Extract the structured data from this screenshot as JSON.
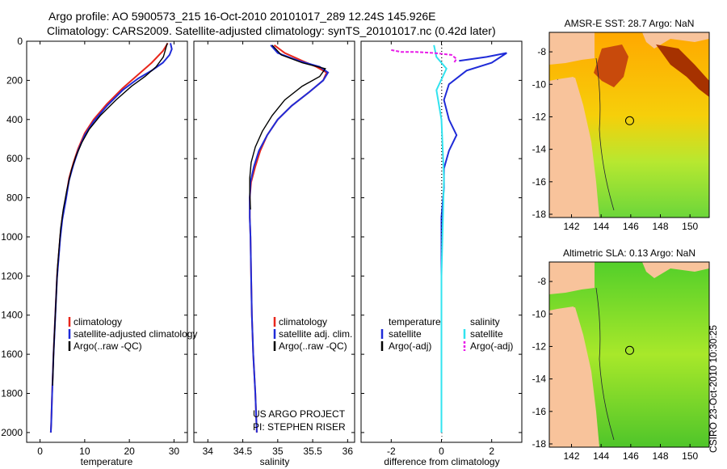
{
  "title": {
    "line1": "Argo profile: AO 5900573_215 16-Oct-2010 20101017_289 12.24S 145.926E",
    "line2": "Climatology: CARS2009. Satellite-adjusted climatology: synTS_20101017.nc (0.42d later)"
  },
  "side_text": "CSIRO 23-Oct-2010 10:30:25",
  "colors": {
    "clim": "#e8271c",
    "sat": "#1f2bd8",
    "argo": "#000000",
    "sal_sat": "#31e3ef",
    "sal_argo": "#e81be8",
    "land": "#f8c39b"
  },
  "chart_data": [
    {
      "type": "line",
      "name": "temperature",
      "xlabel": "temperature",
      "xlim": [
        -3,
        33
      ],
      "ylim": [
        0,
        2050
      ],
      "yreversed": true,
      "xticks": [
        0,
        10,
        20,
        30
      ],
      "yticks": [
        0,
        200,
        400,
        600,
        800,
        1000,
        1200,
        1400,
        1600,
        1800,
        2000
      ],
      "legend": [
        "climatology",
        "satellite-adjusted climatology",
        "Argo(..raw -QC)"
      ],
      "series": [
        {
          "name": "climatology",
          "color_key": "clim",
          "x": [
            28.6,
            27.5,
            25,
            22,
            18.5,
            15,
            12,
            10,
            8.5,
            7.5,
            6.5,
            5.8,
            5,
            4.5,
            3.8,
            3.4,
            3.0,
            2.7,
            2.5,
            2.4
          ],
          "y": [
            10,
            50,
            110,
            170,
            240,
            320,
            400,
            470,
            550,
            620,
            700,
            800,
            900,
            1000,
            1200,
            1400,
            1600,
            1800,
            1950,
            2000
          ]
        },
        {
          "name": "satellite-adjusted climatology",
          "color_key": "sat",
          "x": [
            29.2,
            29.5,
            29.0,
            27.5,
            25,
            22,
            18.5,
            15,
            12,
            10,
            8.5,
            7.5,
            6.5,
            5.8,
            5,
            4.5,
            3.8,
            3.4,
            3.0,
            2.7,
            2.5,
            2.4
          ],
          "y": [
            10,
            40,
            70,
            110,
            150,
            190,
            250,
            330,
            410,
            480,
            560,
            630,
            710,
            810,
            910,
            1010,
            1210,
            1410,
            1610,
            1810,
            1960,
            2000
          ]
        },
        {
          "name": "Argo(..raw -QC)",
          "color_key": "argo",
          "x": [
            28.5,
            27.6,
            26,
            23.5,
            20.5,
            17,
            13.5,
            11,
            9.3,
            8,
            7,
            6,
            5.2,
            4.6,
            3.9,
            3.5,
            3.1,
            2.8
          ],
          "y": [
            10,
            80,
            130,
            180,
            230,
            300,
            380,
            450,
            520,
            590,
            660,
            760,
            860,
            960,
            1160,
            1360,
            1560,
            1760
          ]
        }
      ]
    },
    {
      "type": "line",
      "name": "salinity",
      "xlabel": "salinity",
      "xlim": [
        33.8,
        36.1
      ],
      "ylim": [
        0,
        2050
      ],
      "yreversed": true,
      "xticks": [
        34,
        34.5,
        35,
        35.5,
        36
      ],
      "legend": [
        "climatology",
        "satellite adj. clim.",
        "Argo(..raw -QC)"
      ],
      "annotations": [
        "US ARGO PROJECT",
        "PI: STEPHEN RISER"
      ],
      "series": [
        {
          "name": "climatology",
          "color_key": "clim",
          "x": [
            34.95,
            35.1,
            35.35,
            35.55,
            35.7,
            35.65,
            35.45,
            35.2,
            35.0,
            34.85,
            34.75,
            34.68,
            34.62,
            34.6,
            34.6,
            34.61,
            34.62,
            34.63,
            34.65,
            34.68,
            34.7
          ],
          "y": [
            20,
            60,
            100,
            130,
            160,
            200,
            260,
            330,
            400,
            480,
            560,
            640,
            720,
            800,
            900,
            1000,
            1200,
            1400,
            1600,
            1800,
            2000
          ]
        },
        {
          "name": "satellite adj. clim.",
          "color_key": "sat",
          "x": [
            34.9,
            35.0,
            35.3,
            35.6,
            35.72,
            35.65,
            35.45,
            35.2,
            35.0,
            34.85,
            34.73,
            34.66,
            34.61,
            34.6,
            34.6,
            34.61,
            34.62,
            34.63,
            34.65,
            34.68,
            34.7
          ],
          "y": [
            20,
            60,
            100,
            130,
            160,
            200,
            260,
            330,
            400,
            480,
            560,
            640,
            720,
            800,
            900,
            1000,
            1200,
            1400,
            1600,
            1800,
            2000
          ]
        },
        {
          "name": "Argo(..raw -QC)",
          "color_key": "argo",
          "x": [
            34.92,
            35.05,
            35.35,
            35.68,
            35.6,
            35.35,
            35.1,
            34.92,
            34.78,
            34.68,
            34.62,
            34.6,
            34.6,
            34.61
          ],
          "y": [
            20,
            70,
            110,
            140,
            180,
            230,
            300,
            380,
            460,
            540,
            620,
            700,
            780,
            860
          ]
        }
      ]
    },
    {
      "type": "line",
      "name": "difference",
      "xlabel": "difference from climatology",
      "xlim": [
        -3.2,
        3.2
      ],
      "ylim": [
        0,
        2050
      ],
      "yreversed": true,
      "xticks": [
        -2,
        0,
        2
      ],
      "legend_left": {
        "title": "temperature",
        "items": [
          "satellite",
          "Argo(-adj)"
        ]
      },
      "legend_right": {
        "title": "salinity",
        "items": [
          "satellite",
          "Argo(-adj)"
        ]
      },
      "series": [
        {
          "name": "temperature satellite",
          "color_key": "sat",
          "x": [
            0.7,
            1.8,
            2.6,
            2.0,
            1.0,
            0.3,
            0.1,
            0.3,
            0.6,
            0.3,
            0.1,
            0.1,
            0.0,
            0.0,
            0.0
          ],
          "y": [
            100,
            80,
            60,
            110,
            150,
            220,
            300,
            400,
            480,
            560,
            650,
            750,
            900,
            1400,
            2000
          ]
        },
        {
          "name": "temperature Argo(-adj)",
          "color_key": "argo",
          "x": [
            0.0,
            0.0
          ],
          "y": [
            0,
            2000
          ]
        },
        {
          "name": "salinity satellite",
          "color_key": "sal_sat",
          "x": [
            -0.3,
            -0.2,
            0.2,
            -0.2,
            0.0,
            0.1,
            0.0,
            0.0
          ],
          "y": [
            20,
            80,
            140,
            250,
            400,
            700,
            1200,
            2000
          ]
        },
        {
          "name": "salinity Argo(-adj)",
          "color_key": "sal_argo",
          "x": [
            -2.0,
            -1.6,
            -1.0,
            -0.3,
            0.4,
            0.6,
            0.5
          ],
          "y": [
            45,
            55,
            55,
            60,
            70,
            90,
            110
          ]
        }
      ]
    },
    {
      "type": "heatmap",
      "name": "AMSR-E SST map",
      "title": "AMSR-E SST: 28.7  Argo: NaN",
      "xlim": [
        140.5,
        151.3
      ],
      "ylim": [
        -18.2,
        -6.8
      ],
      "xticks": [
        142,
        144,
        146,
        148,
        150
      ],
      "yticks": [
        -8,
        -10,
        -12,
        -14,
        -16,
        -18
      ],
      "marker": {
        "lon": 145.926,
        "lat": -12.24
      }
    },
    {
      "type": "heatmap",
      "name": "Altimetric SLA map",
      "title": "Altimetric SLA: 0.13  Argo: NaN",
      "xlim": [
        140.5,
        151.3
      ],
      "ylim": [
        -18.2,
        -6.8
      ],
      "xticks": [
        142,
        144,
        146,
        148,
        150
      ],
      "yticks": [
        -8,
        -10,
        -12,
        -14,
        -16,
        -18
      ],
      "marker": {
        "lon": 145.926,
        "lat": -12.24
      }
    }
  ]
}
